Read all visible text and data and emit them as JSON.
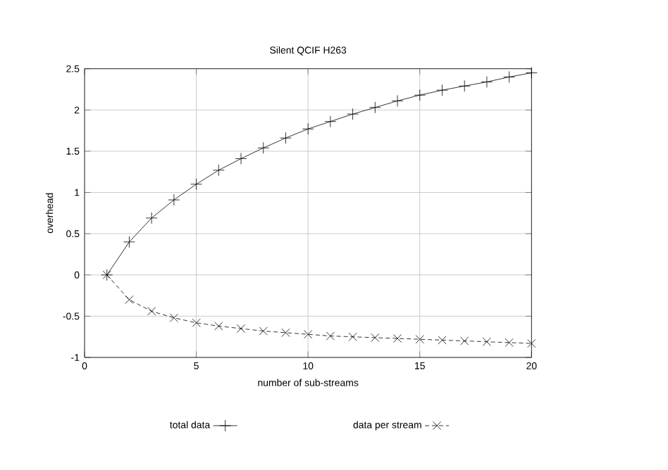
{
  "chart_data": {
    "type": "line",
    "title": "Silent QCIF H263",
    "xlabel": "number of sub-streams",
    "ylabel": "overhead",
    "x": [
      1,
      2,
      3,
      4,
      5,
      6,
      7,
      8,
      9,
      10,
      11,
      12,
      13,
      14,
      15,
      16,
      17,
      18,
      19,
      20
    ],
    "series": [
      {
        "name": "total data",
        "color": "#000000",
        "marker": "cross",
        "line_style": "solid",
        "values": [
          0,
          0.4,
          0.69,
          0.91,
          1.1,
          1.27,
          1.41,
          1.54,
          1.66,
          1.77,
          1.86,
          1.95,
          2.03,
          2.11,
          2.18,
          2.24,
          2.29,
          2.34,
          2.4,
          2.45
        ]
      },
      {
        "name": "data per stream",
        "color": "#000000",
        "marker": "x",
        "line_style": "dashed",
        "values": [
          0,
          -0.3,
          -0.44,
          -0.52,
          -0.58,
          -0.62,
          -0.65,
          -0.68,
          -0.7,
          -0.72,
          -0.74,
          -0.75,
          -0.76,
          -0.77,
          -0.78,
          -0.79,
          -0.8,
          -0.81,
          -0.82,
          -0.83
        ]
      }
    ],
    "xlim": [
      0,
      20
    ],
    "ylim": [
      -1,
      2.5
    ],
    "xticks": [
      0,
      5,
      10,
      15,
      20
    ],
    "yticks": [
      -1,
      -0.5,
      0,
      0.5,
      1,
      1.5,
      2,
      2.5
    ],
    "grid": true,
    "legend": "bottom"
  }
}
